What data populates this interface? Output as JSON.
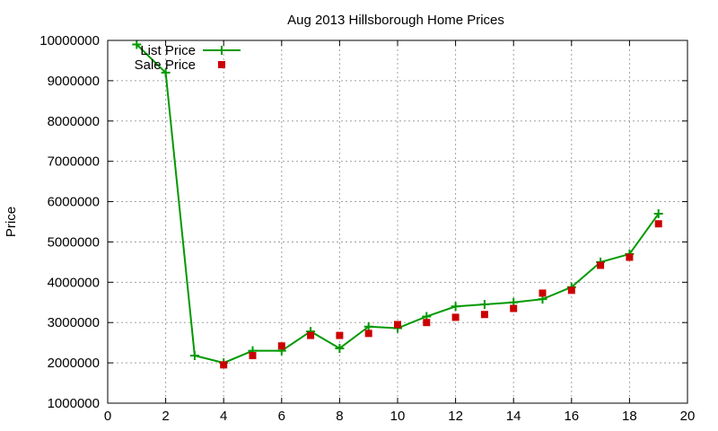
{
  "chart_data": {
    "type": "line",
    "title": "Aug 2013 Hillsborough Home Prices",
    "xlabel": "",
    "ylabel": "Price",
    "xlim": [
      0,
      20
    ],
    "ylim": [
      1000000,
      10000000
    ],
    "xticks": [
      0,
      2,
      4,
      6,
      8,
      10,
      12,
      14,
      16,
      18,
      20
    ],
    "yticks": [
      1000000,
      2000000,
      3000000,
      4000000,
      5000000,
      6000000,
      7000000,
      8000000,
      9000000,
      10000000
    ],
    "grid": true,
    "legend_position": "top-left",
    "series": [
      {
        "name": "List Price",
        "style": "line-and-plus",
        "color": "#009900",
        "x": [
          1,
          2,
          3,
          4,
          5,
          6,
          7,
          8,
          9,
          10,
          11,
          12,
          13,
          14,
          15,
          16,
          17,
          18,
          19
        ],
        "y": [
          9900000,
          9200000,
          2180000,
          2000000,
          2300000,
          2300000,
          2780000,
          2360000,
          2900000,
          2860000,
          3150000,
          3400000,
          3450000,
          3500000,
          3580000,
          3880000,
          4500000,
          4700000,
          5700000
        ]
      },
      {
        "name": "Sale Price",
        "style": "square-markers",
        "color": "#cc0000",
        "x": [
          4,
          5,
          6,
          7,
          8,
          9,
          10,
          11,
          12,
          13,
          14,
          15,
          16,
          17,
          18,
          19
        ],
        "y": [
          1950000,
          2180000,
          2420000,
          2680000,
          2680000,
          2730000,
          2950000,
          3000000,
          3130000,
          3200000,
          3350000,
          3730000,
          3800000,
          4420000,
          4620000,
          5450000
        ]
      }
    ]
  }
}
